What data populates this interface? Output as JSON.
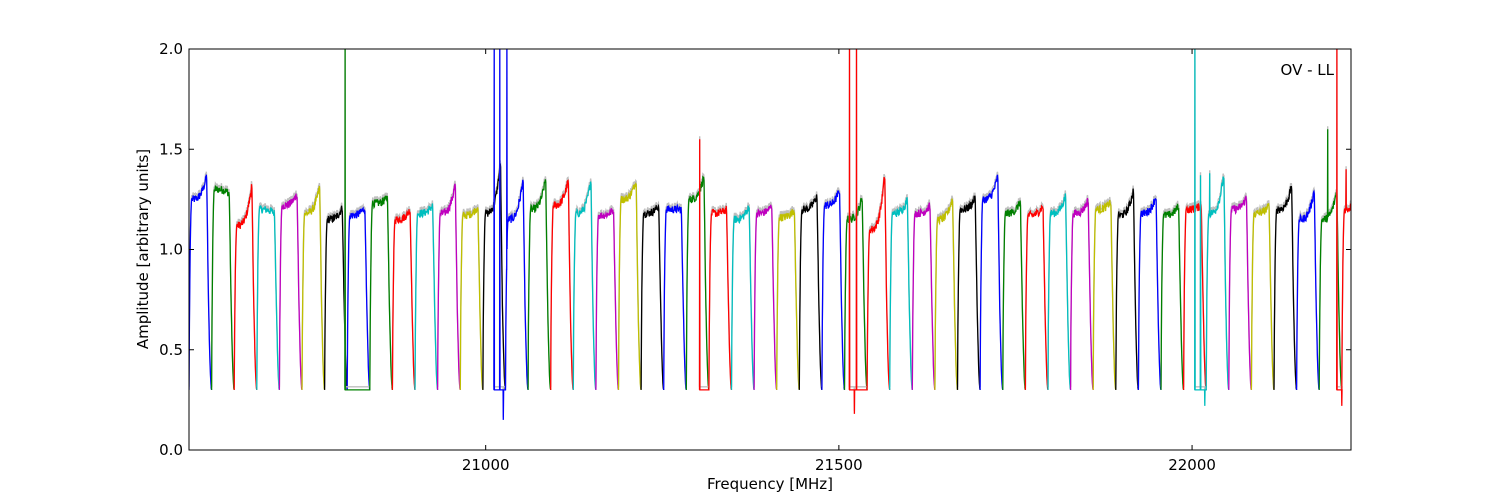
{
  "chart_data": {
    "type": "line",
    "title": "",
    "xlabel": "Frequency [MHz]",
    "ylabel": "Amplitude [arbitrary units]",
    "annotation": "OV - LL",
    "xlim": [
      20580,
      22225
    ],
    "ylim": [
      0.0,
      2.0
    ],
    "x_ticks": [
      21000,
      21500,
      22000
    ],
    "x_tick_labels": [
      "21000",
      "21500",
      "22000"
    ],
    "y_ticks": [
      0.0,
      0.5,
      1.0,
      1.5,
      2.0
    ],
    "y_tick_labels": [
      "0.0",
      "0.5",
      "1.0",
      "1.5",
      "2.0"
    ],
    "grid": false,
    "reference_color": "#bfbfbf",
    "color_cycle": [
      "#0000ff",
      "#008000",
      "#ff0000",
      "#00bfbf",
      "#bf00bf",
      "#bfbf00",
      "#000000"
    ],
    "band_width_mhz": 32,
    "bands": [
      {
        "start": 20580,
        "level": 1.25,
        "edge": 1.37
      },
      {
        "start": 20612,
        "level": 1.3,
        "edge": 1.28
      },
      {
        "start": 20644,
        "level": 1.12,
        "edge": 1.33
      },
      {
        "start": 20676,
        "level": 1.2,
        "edge": 1.18
      },
      {
        "start": 20708,
        "level": 1.22,
        "edge": 1.28
      },
      {
        "start": 20740,
        "level": 1.18,
        "edge": 1.32
      },
      {
        "start": 20772,
        "level": 1.15,
        "edge": 1.21
      },
      {
        "start": 20804,
        "level": 1.17,
        "edge": 1.21
      },
      {
        "start": 20836,
        "level": 1.23,
        "edge": 1.26,
        "spikes": [
          [
            20801,
            2.0
          ]
        ]
      },
      {
        "start": 20868,
        "level": 1.15,
        "edge": 1.2
      },
      {
        "start": 20900,
        "level": 1.18,
        "edge": 1.22
      },
      {
        "start": 20932,
        "level": 1.18,
        "edge": 1.33
      },
      {
        "start": 20964,
        "level": 1.17,
        "edge": 1.22
      },
      {
        "start": 20996,
        "level": 1.18,
        "edge": 1.44
      },
      {
        "start": 21028,
        "level": 1.15,
        "edge": 1.36,
        "spikes": [
          [
            21012,
            2.0
          ],
          [
            21020,
            2.0
          ],
          [
            21030,
            2.0
          ],
          [
            21025,
            0.15
          ]
        ]
      },
      {
        "start": 21060,
        "level": 1.2,
        "edge": 1.36
      },
      {
        "start": 21092,
        "level": 1.22,
        "edge": 1.35
      },
      {
        "start": 21124,
        "level": 1.18,
        "edge": 1.35
      },
      {
        "start": 21156,
        "level": 1.17,
        "edge": 1.2
      },
      {
        "start": 21188,
        "level": 1.25,
        "edge": 1.35
      },
      {
        "start": 21220,
        "level": 1.18,
        "edge": 1.22
      },
      {
        "start": 21252,
        "level": 1.2,
        "edge": 1.2
      },
      {
        "start": 21284,
        "level": 1.25,
        "edge": 1.37
      },
      {
        "start": 21316,
        "level": 1.18,
        "edge": 1.2,
        "spikes": [
          [
            21303,
            1.55
          ]
        ]
      },
      {
        "start": 21348,
        "level": 1.15,
        "edge": 1.22
      },
      {
        "start": 21380,
        "level": 1.18,
        "edge": 1.22
      },
      {
        "start": 21412,
        "level": 1.16,
        "edge": 1.2
      },
      {
        "start": 21444,
        "level": 1.2,
        "edge": 1.27
      },
      {
        "start": 21476,
        "level": 1.22,
        "edge": 1.3
      },
      {
        "start": 21508,
        "level": 1.15,
        "edge": 1.26
      },
      {
        "start": 21540,
        "level": 1.1,
        "edge": 1.38,
        "spikes": [
          [
            21515,
            2.0
          ],
          [
            21525,
            2.0
          ],
          [
            21522,
            0.18
          ]
        ]
      },
      {
        "start": 21572,
        "level": 1.18,
        "edge": 1.25
      },
      {
        "start": 21604,
        "level": 1.18,
        "edge": 1.22
      },
      {
        "start": 21636,
        "level": 1.15,
        "edge": 1.26
      },
      {
        "start": 21668,
        "level": 1.2,
        "edge": 1.26
      },
      {
        "start": 21700,
        "level": 1.25,
        "edge": 1.37
      },
      {
        "start": 21732,
        "level": 1.18,
        "edge": 1.24
      },
      {
        "start": 21764,
        "level": 1.17,
        "edge": 1.22
      },
      {
        "start": 21796,
        "level": 1.18,
        "edge": 1.27
      },
      {
        "start": 21828,
        "level": 1.18,
        "edge": 1.25
      },
      {
        "start": 21860,
        "level": 1.2,
        "edge": 1.24
      },
      {
        "start": 21892,
        "level": 1.17,
        "edge": 1.3
      },
      {
        "start": 21924,
        "level": 1.18,
        "edge": 1.27
      },
      {
        "start": 21956,
        "level": 1.17,
        "edge": 1.22
      },
      {
        "start": 21988,
        "level": 1.2,
        "edge": 1.22
      },
      {
        "start": 22020,
        "level": 1.18,
        "edge": 1.38,
        "spikes": [
          [
            22004,
            2.0
          ],
          [
            22012,
            1.37
          ],
          [
            22018,
            0.22
          ],
          [
            22025,
            1.38
          ]
        ]
      },
      {
        "start": 22052,
        "level": 1.2,
        "edge": 1.26
      },
      {
        "start": 22084,
        "level": 1.18,
        "edge": 1.22
      },
      {
        "start": 22116,
        "level": 1.2,
        "edge": 1.32
      },
      {
        "start": 22148,
        "level": 1.15,
        "edge": 1.3
      },
      {
        "start": 22180,
        "level": 1.15,
        "edge": 1.3,
        "spikes": [
          [
            22192,
            1.6
          ]
        ]
      },
      {
        "start": 22212,
        "level": 1.2,
        "edge": 1.4,
        "spikes": [
          [
            22205,
            2.0
          ],
          [
            22212,
            0.22
          ],
          [
            22218,
            1.4
          ]
        ]
      }
    ]
  }
}
